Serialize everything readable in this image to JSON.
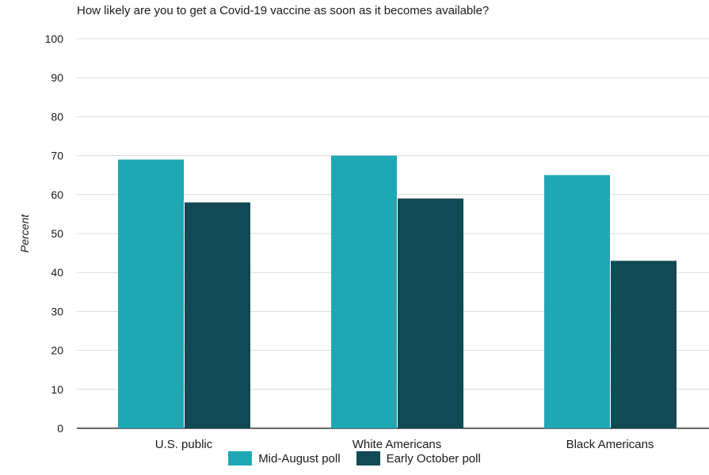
{
  "chart_data": {
    "type": "bar",
    "title": "How likely are you to get a Covid-19 vaccine as soon as it becomes available?",
    "ylabel": "Percent",
    "xlabel": "",
    "ylim": [
      0,
      100
    ],
    "yticks": [
      0,
      10,
      20,
      30,
      40,
      50,
      60,
      70,
      80,
      90,
      100
    ],
    "categories": [
      "U.S. public",
      "White Americans",
      "Black Americans"
    ],
    "series": [
      {
        "name": "Mid-August poll",
        "color": "#1fa8b4",
        "values": [
          69,
          70,
          65
        ]
      },
      {
        "name": "Early October poll",
        "color": "#114a55",
        "values": [
          58,
          59,
          43
        ]
      }
    ],
    "grid": true,
    "legend": "bottom"
  }
}
